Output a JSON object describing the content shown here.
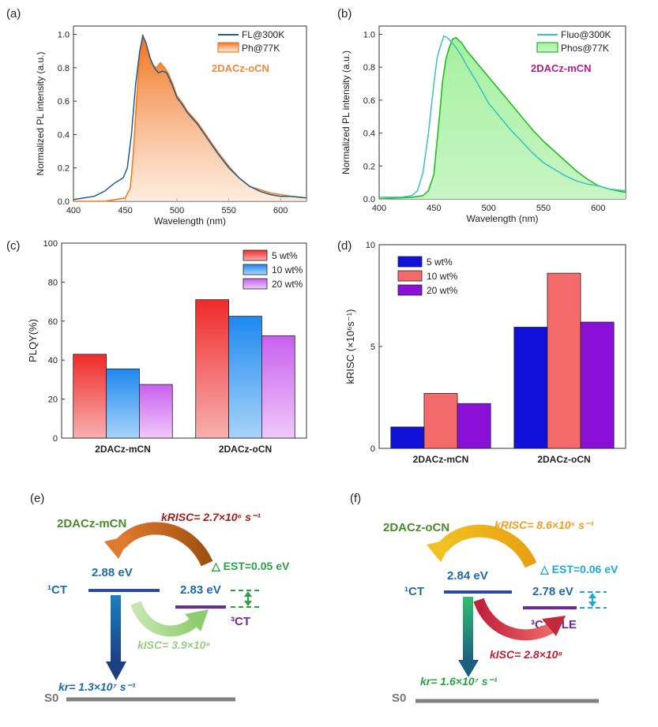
{
  "panels": {
    "a": {
      "letter": "(a)"
    },
    "b": {
      "letter": "(b)"
    },
    "c": {
      "letter": "(c)"
    },
    "d": {
      "letter": "(d)"
    },
    "e": {
      "letter": "(e)"
    },
    "f": {
      "letter": "(f)"
    }
  },
  "colors": {
    "fl_blue": "#1f5d8c",
    "ph_orange": "#f07a20",
    "fluo_cyan": "#35c2c2",
    "phos_green": "#22bb22",
    "oCN_label": "#f0883a",
    "mCN_label": "#b0208a",
    "bar_red": "#f03a3a",
    "bar_blue": "#2a8ef0",
    "bar_violet": "#d070f0",
    "k_navy": "#1010d8",
    "k_salmon": "#f56a6a",
    "k_purple": "#8a10d8"
  },
  "chart_data": [
    {
      "id": "a",
      "type": "area",
      "xlabel": "Wavelength (nm)",
      "ylabel": "Normalized PL intensity (a.u.)",
      "xlim": [
        400,
        625
      ],
      "ylim": [
        0,
        1.05
      ],
      "xticks": [
        400,
        450,
        500,
        550,
        600
      ],
      "yticks": [
        0.0,
        0.2,
        0.4,
        0.6,
        0.8,
        1.0
      ],
      "annotation": "2DACz-oCN",
      "series": [
        {
          "name": "FL@300K",
          "style": "line",
          "x": [
            400,
            410,
            420,
            430,
            440,
            448,
            452,
            456,
            460,
            464,
            467,
            470,
            474,
            478,
            482,
            486,
            490,
            495,
            500,
            505,
            510,
            520,
            530,
            540,
            550,
            560,
            570,
            580,
            590,
            600,
            610,
            625
          ],
          "y": [
            0.01,
            0.02,
            0.03,
            0.06,
            0.11,
            0.14,
            0.2,
            0.4,
            0.7,
            0.9,
            0.99,
            0.95,
            0.86,
            0.8,
            0.77,
            0.78,
            0.77,
            0.7,
            0.62,
            0.58,
            0.53,
            0.46,
            0.37,
            0.28,
            0.2,
            0.14,
            0.09,
            0.06,
            0.04,
            0.03,
            0.03,
            0.02
          ]
        },
        {
          "name": "Ph@77K",
          "style": "filled",
          "x": [
            400,
            430,
            440,
            450,
            455,
            458,
            460,
            463,
            465,
            467,
            469,
            472,
            476,
            480,
            484,
            488,
            492,
            496,
            500,
            505,
            510,
            520,
            530,
            540,
            550,
            560,
            570,
            580,
            590,
            600,
            610,
            625
          ],
          "y": [
            0.0,
            0.0,
            0.01,
            0.02,
            0.08,
            0.3,
            0.52,
            0.8,
            0.92,
            1.0,
            0.95,
            0.88,
            0.82,
            0.8,
            0.83,
            0.8,
            0.76,
            0.7,
            0.63,
            0.59,
            0.54,
            0.47,
            0.38,
            0.29,
            0.21,
            0.14,
            0.09,
            0.07,
            0.05,
            0.04,
            0.03,
            0.02
          ]
        }
      ]
    },
    {
      "id": "b",
      "type": "area",
      "xlabel": "Wavelength (nm)",
      "ylabel": "Normalized PL intensity (a.u.)",
      "xlim": [
        400,
        625
      ],
      "ylim": [
        0,
        1.05
      ],
      "xticks": [
        400,
        450,
        500,
        550,
        600
      ],
      "yticks": [
        0.0,
        0.2,
        0.4,
        0.6,
        0.8,
        1.0
      ],
      "annotation": "2DACz-mCN",
      "series": [
        {
          "name": "Fluo@300K",
          "style": "line",
          "x": [
            400,
            420,
            430,
            435,
            440,
            445,
            450,
            453,
            456,
            459,
            462,
            465,
            470,
            475,
            480,
            490,
            500,
            510,
            520,
            530,
            540,
            550,
            560,
            570,
            580,
            590,
            600,
            610,
            625
          ],
          "y": [
            0.01,
            0.01,
            0.02,
            0.05,
            0.16,
            0.4,
            0.7,
            0.86,
            0.93,
            0.99,
            0.98,
            0.96,
            0.92,
            0.87,
            0.81,
            0.7,
            0.58,
            0.5,
            0.42,
            0.35,
            0.28,
            0.22,
            0.18,
            0.14,
            0.11,
            0.09,
            0.08,
            0.06,
            0.05
          ]
        },
        {
          "name": "Phos@77K",
          "style": "filled",
          "x": [
            400,
            430,
            440,
            445,
            450,
            455,
            458,
            461,
            464,
            467,
            470,
            475,
            480,
            485,
            490,
            495,
            500,
            510,
            520,
            530,
            540,
            550,
            560,
            570,
            580,
            590,
            600,
            610,
            625
          ],
          "y": [
            0.0,
            0.01,
            0.02,
            0.05,
            0.15,
            0.5,
            0.72,
            0.85,
            0.92,
            0.97,
            0.98,
            0.95,
            0.9,
            0.86,
            0.82,
            0.78,
            0.74,
            0.66,
            0.58,
            0.5,
            0.42,
            0.35,
            0.29,
            0.23,
            0.17,
            0.12,
            0.08,
            0.06,
            0.04
          ]
        }
      ]
    },
    {
      "id": "c",
      "type": "bar",
      "ylabel": "PLQY(%)",
      "ylim": [
        0,
        100
      ],
      "yticks": [
        0,
        20,
        40,
        60,
        80,
        100
      ],
      "categories": [
        "2DACz-mCN",
        "2DACz-oCN"
      ],
      "series": [
        {
          "name": "5 wt%",
          "values": [
            43,
            71
          ]
        },
        {
          "name": "10 wt%",
          "values": [
            35.5,
            62.5
          ]
        },
        {
          "name": "20 wt%",
          "values": [
            27.5,
            52.5
          ]
        }
      ]
    },
    {
      "id": "d",
      "type": "bar",
      "ylabel": "kRISC (×10⁶s⁻¹)",
      "ylim": [
        0,
        10
      ],
      "yticks": [
        0,
        5,
        10
      ],
      "categories": [
        "2DACz-mCN",
        "2DACz-oCN"
      ],
      "series": [
        {
          "name": "5 wt%",
          "values": [
            1.05,
            5.95
          ]
        },
        {
          "name": "10 wt%",
          "values": [
            2.7,
            8.6
          ]
        },
        {
          "name": "20 wt%",
          "values": [
            2.2,
            6.2
          ]
        }
      ]
    }
  ],
  "diagram_e": {
    "molecule": "2DACz-mCN",
    "s1_label": "¹CT",
    "s1_energy": "2.88 eV",
    "t1_energy": "2.83 eV",
    "t1_label": "³CT",
    "krisc": "kRISC= 2.7×10⁶ s⁻¹",
    "dest": "△ EST=0.05 eV",
    "kisc": "kISC= 3.9×10⁸",
    "kr": "kr= 1.3×10⁷ s⁻¹",
    "s0": "S0"
  },
  "diagram_f": {
    "molecule": "2DACz-oCN",
    "s1_label": "¹CT",
    "s1_energy": "2.84 eV",
    "t1_energy": "2.78 eV",
    "t1_label": "³CT+³LE",
    "krisc": "kRISC= 8.6×10⁶ s⁻¹",
    "dest": "△ EST=0.06 eV",
    "kisc": "kISC= 2.8×10⁸",
    "kr": "kr= 1.6×10⁷ s⁻¹",
    "s0": "S0"
  }
}
